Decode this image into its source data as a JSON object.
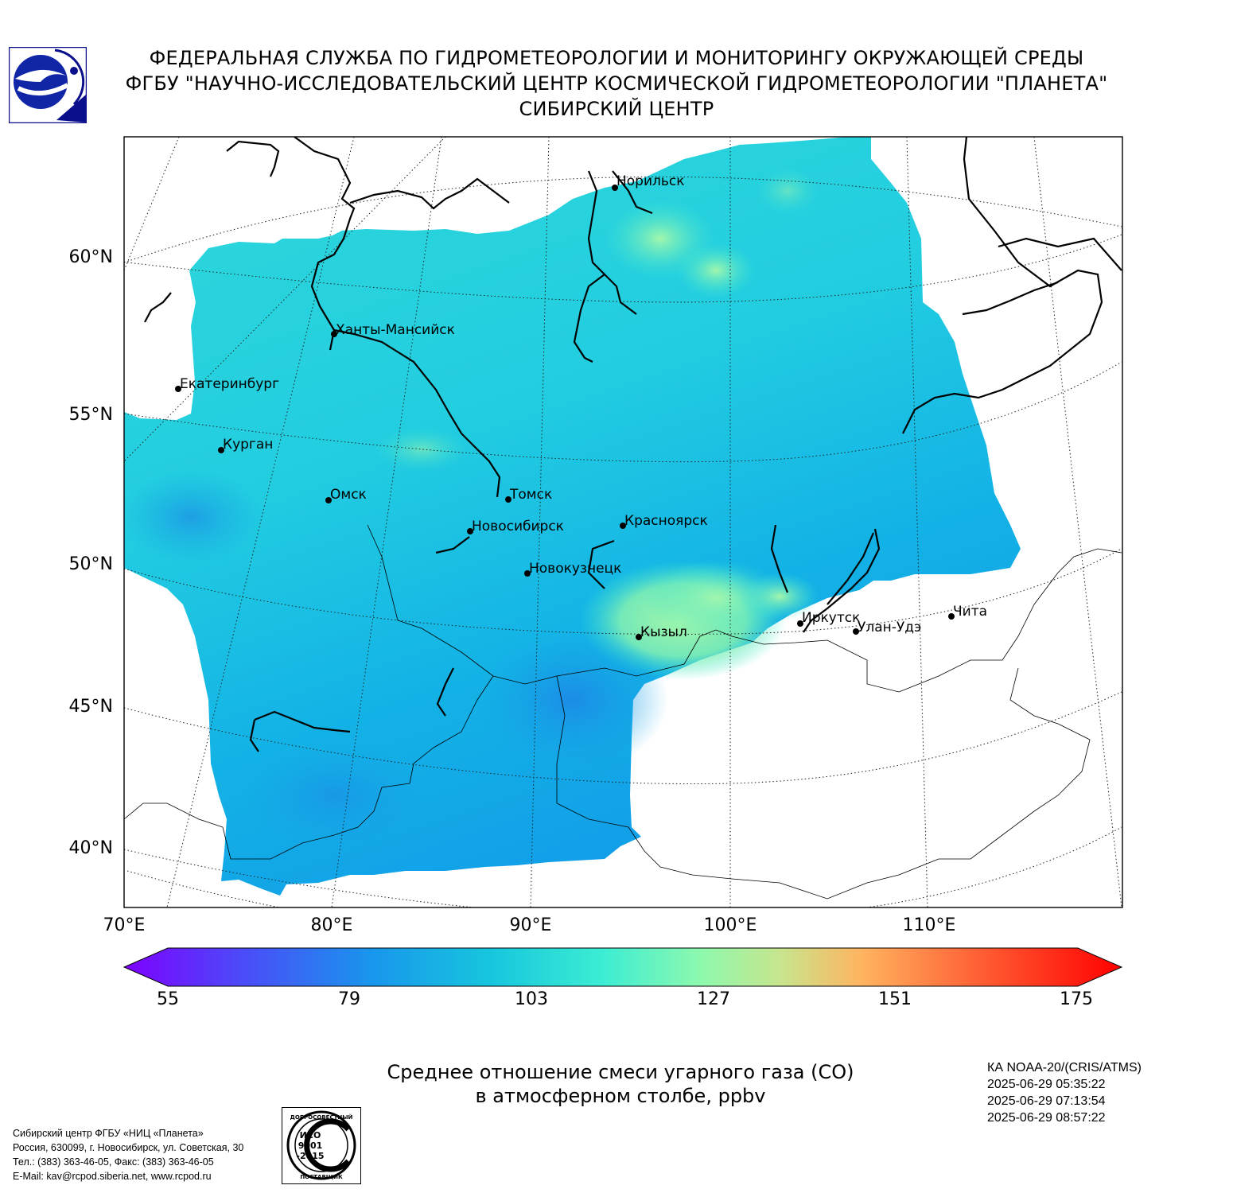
{
  "header": {
    "line1": "ФЕДЕРАЛЬНАЯ СЛУЖБА ПО ГИДРОМЕТЕОРОЛОГИИ И МОНИТОРИНГУ ОКРУЖАЮЩЕЙ СРЕДЫ",
    "line2": "ФГБУ \"НАУЧНО-ИССЛЕДОВАТЕЛЬСКИЙ ЦЕНТР КОСМИЧЕСКОЙ ГИДРОМЕТЕОРОЛОГИИ \"ПЛАНЕТА\"",
    "line3": "СИБИРСКИЙ ЦЕНТР"
  },
  "map": {
    "lat_labels": [
      "60°N",
      "55°N",
      "50°N",
      "45°N",
      "40°N"
    ],
    "lon_labels": [
      "70°E",
      "80°E",
      "90°E",
      "100°E",
      "110°E"
    ],
    "cities": [
      {
        "name": "Норильск"
      },
      {
        "name": "Ханты-Мансийск"
      },
      {
        "name": "Екатеринбург"
      },
      {
        "name": "Курган"
      },
      {
        "name": "Омск"
      },
      {
        "name": "Томск"
      },
      {
        "name": "Новосибирск"
      },
      {
        "name": "Красноярск"
      },
      {
        "name": "Новокузнецк"
      },
      {
        "name": "Иркутск"
      },
      {
        "name": "Кызыл"
      },
      {
        "name": "Улан-Удэ"
      },
      {
        "name": "Чита"
      }
    ]
  },
  "colorbar": {
    "ticks": [
      "55",
      "79",
      "103",
      "127",
      "151",
      "175"
    ],
    "colors": [
      "#7e00ff",
      "#3f5cf6",
      "#0ab0e8",
      "#40ecd2",
      "#9cfca4",
      "#d6d67a",
      "#ffa457",
      "#ff4d2b",
      "#ff0000"
    ]
  },
  "product": {
    "title_line1": "Среднее отношение смеси угарного газа (CO)",
    "title_line2": "в атмосферном столбе, ppbv"
  },
  "satellite": {
    "name": "КА NOAA-20/(CRIS/ATMS)",
    "times": [
      "2025-06-29 05:35:22",
      "2025-06-29 07:13:54",
      "2025-06-29 08:57:22"
    ]
  },
  "footer": {
    "lines": [
      "Сибирский центр ФГБУ «НИЦ «Планета»",
      "Россия, 630099, г. Новосибирск, ул. Советская, 30",
      "Тел.: (383) 363-46-05, Факс: (383) 363-46-05",
      "E-Mail: kav@rcpod.siberia.net, www.rcpod.ru"
    ]
  },
  "stamp": {
    "top_text": "ДОБРОСОВЕСТНЫЙ",
    "center": [
      "ИСО",
      "9001",
      "-2015"
    ],
    "bottom_text": "ПОСТАВЩИК"
  }
}
